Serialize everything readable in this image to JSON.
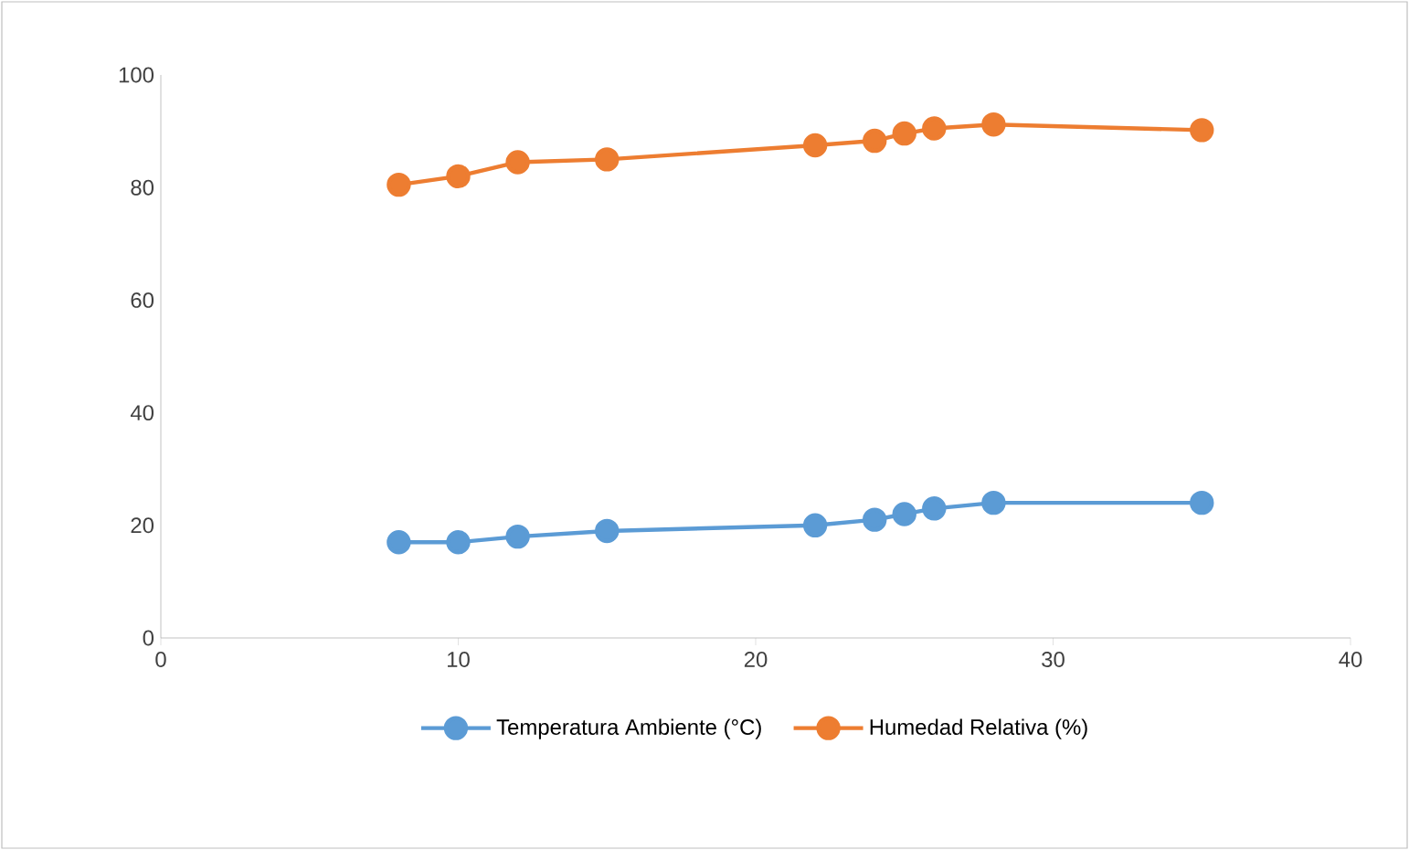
{
  "chart_data": {
    "type": "line",
    "x": [
      8,
      10,
      12,
      15,
      22,
      24,
      25,
      26,
      28,
      35
    ],
    "series": [
      {
        "name": "Temperatura Ambiente (°C)",
        "color": "#5b9bd5",
        "values": [
          17,
          17,
          18,
          19,
          20,
          21,
          22,
          23,
          24,
          24
        ]
      },
      {
        "name": "Humedad Relativa (%)",
        "color": "#ed7d31",
        "values": [
          80.5,
          82,
          84.5,
          85,
          87.5,
          88.3,
          89.6,
          90.5,
          91.2,
          90.2
        ]
      }
    ],
    "xlim": [
      0,
      40
    ],
    "xticks": [
      0,
      10,
      20,
      30,
      40
    ],
    "ylim": [
      0,
      100
    ],
    "yticks": [
      0,
      20,
      40,
      60,
      80,
      100
    ],
    "grid": false,
    "legend": "bottom",
    "marker": "circle",
    "line_style": "solid"
  }
}
